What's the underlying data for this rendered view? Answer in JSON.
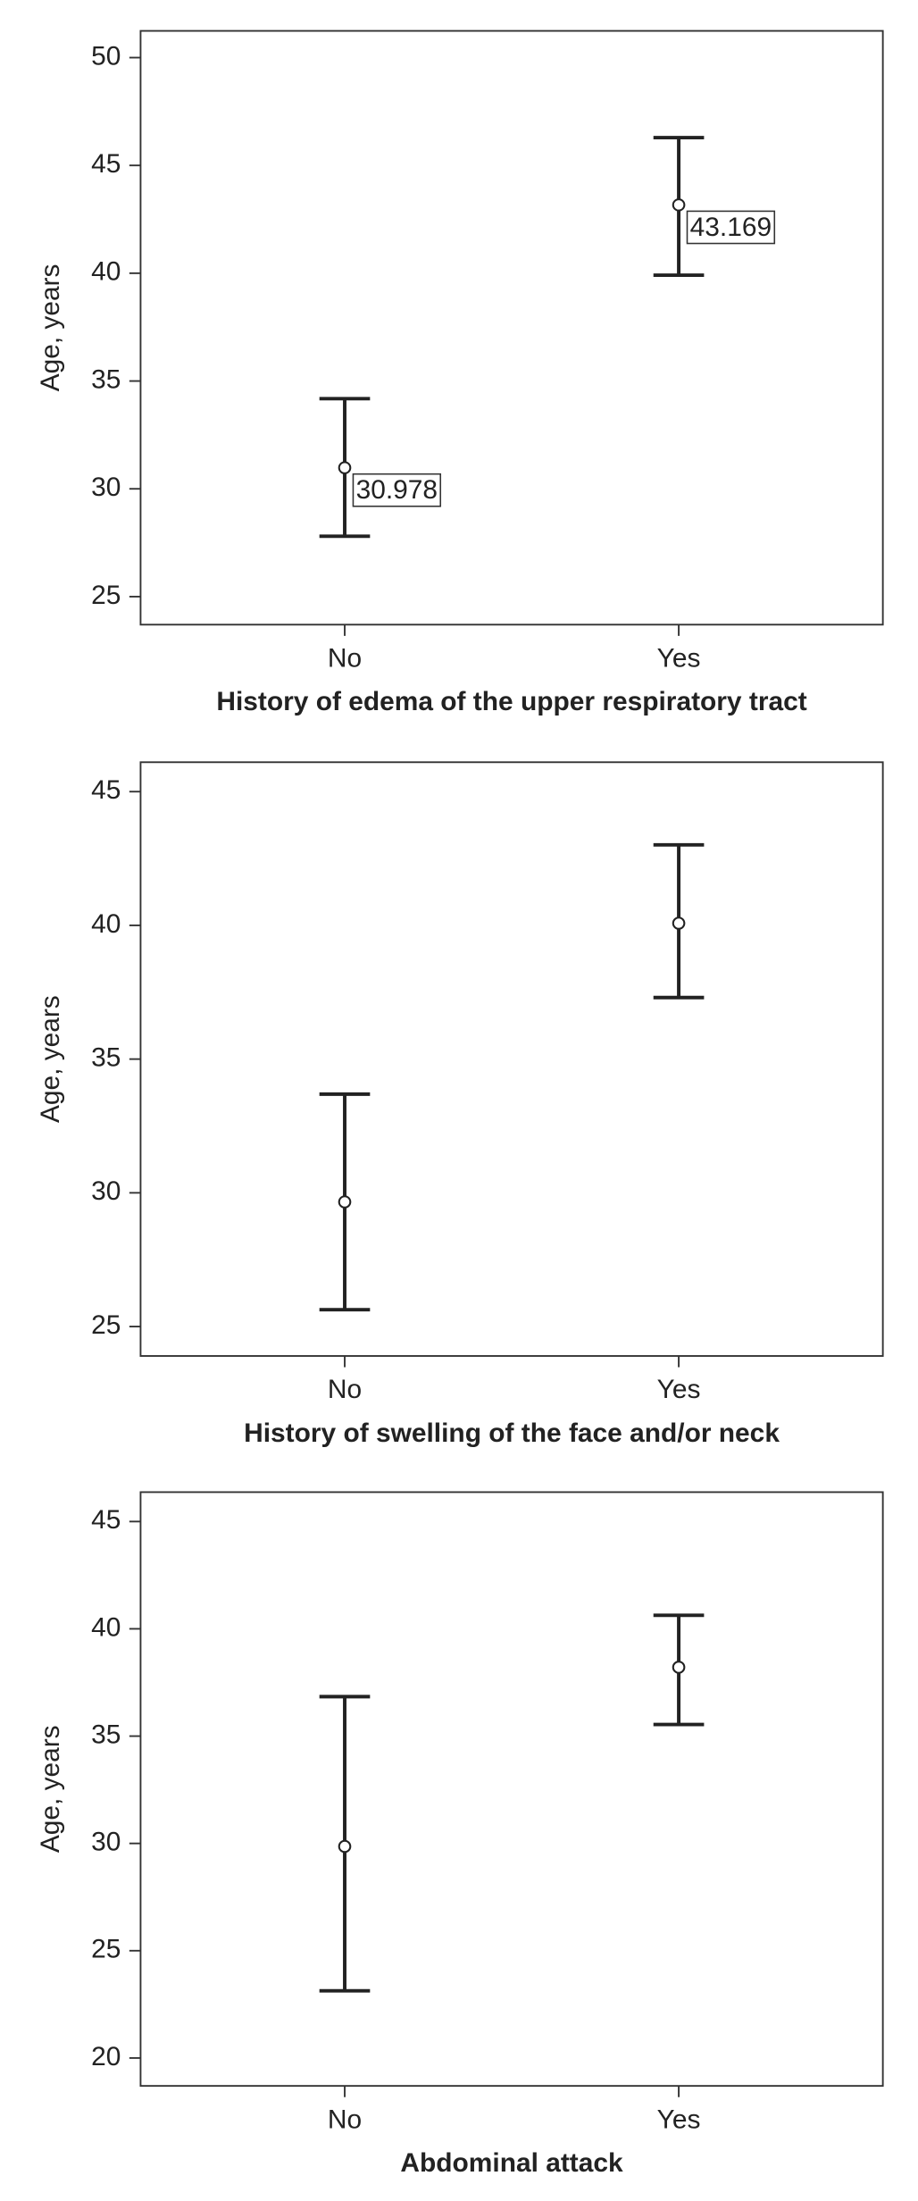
{
  "chart_data": [
    {
      "type": "errorbar",
      "x_label": "History of edema of the upper respiratory tract",
      "y_label": "Age, years",
      "categories": [
        "No",
        "Yes"
      ],
      "values": [
        30.978,
        43.169
      ],
      "lower": [
        27.8,
        39.91
      ],
      "upper": [
        34.18,
        46.29
      ],
      "data_labels": true,
      "ylim": [
        23.7,
        51.24
      ],
      "yticks": [
        25,
        30,
        35,
        40,
        45,
        50
      ],
      "color": "#222222"
    },
    {
      "type": "errorbar",
      "x_label": "History of swelling of the face and/or neck",
      "y_label": "Age, years",
      "categories": [
        "No",
        "Yes"
      ],
      "values": [
        29.66,
        40.08
      ],
      "lower": [
        25.63,
        37.3
      ],
      "upper": [
        33.69,
        43.01
      ],
      "data_labels": false,
      "ylim": [
        23.9,
        46.1
      ],
      "yticks": [
        25,
        30,
        35,
        40,
        45
      ],
      "color": "#222222"
    },
    {
      "type": "errorbar",
      "x_label": "Abdominal attack",
      "y_label": "Age, years",
      "categories": [
        "No",
        "Yes"
      ],
      "values": [
        29.86,
        38.21
      ],
      "lower": [
        23.13,
        35.54
      ],
      "upper": [
        36.84,
        40.63
      ],
      "data_labels": false,
      "ylim": [
        18.7,
        46.37
      ],
      "yticks": [
        20,
        25,
        30,
        35,
        40,
        45
      ],
      "color": "#222222"
    }
  ]
}
